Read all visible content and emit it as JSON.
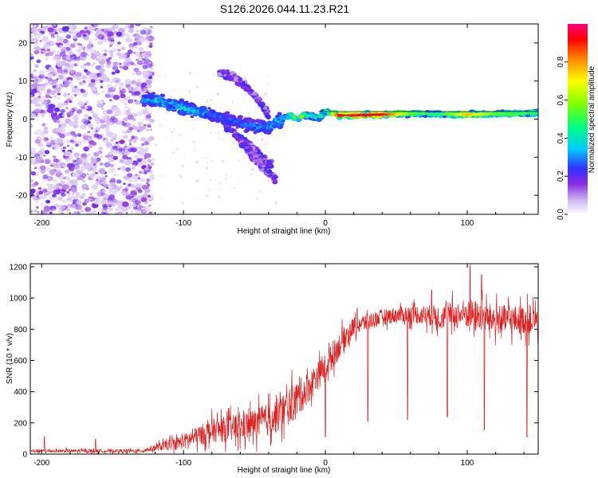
{
  "title": "S126.2026.044.11.23.R21",
  "colors": {
    "background": "#ffffff",
    "axis": "#000000",
    "snr_line": "#e02020",
    "cmap": [
      "#ffffff",
      "#cdb6f0",
      "#8a2be2",
      "#3030ff",
      "#00c8ff",
      "#00ff80",
      "#80ff00",
      "#ffff00",
      "#ff8000",
      "#ff0000",
      "#ff0080"
    ]
  },
  "chart_data": [
    {
      "type": "heatmap",
      "name": "spectrogram",
      "title": "S126.2026.044.11.23.R21",
      "xlabel": "Height of straight line (km)",
      "ylabel": "Frequency (Hz)",
      "xlim": [
        -208,
        150
      ],
      "ylim": [
        -25,
        25
      ],
      "xticks": [
        -200,
        -100,
        0,
        100
      ],
      "xtick_labels": [
        "-200",
        "-100",
        "0",
        "100"
      ],
      "yticks": [
        -20,
        -10,
        0,
        10,
        20
      ],
      "ytick_labels": [
        "-20",
        "-10",
        "0",
        "10",
        "20"
      ],
      "colorbar": {
        "label": "Normalized spectral amplitude",
        "range": [
          0,
          1
        ],
        "ticks": [
          0.0,
          0.2,
          0.4,
          0.6,
          0.8
        ],
        "tick_labels": [
          "0.0",
          "0.2",
          "0.4",
          "0.6",
          "0.8"
        ]
      },
      "noise_region_x": [
        -208,
        -122
      ],
      "ridge": {
        "x": [
          -128,
          -120,
          -110,
          -100,
          -90,
          -80,
          -70,
          -60,
          -50,
          -40,
          -35,
          -30,
          -25,
          -20,
          -15,
          -10,
          -5,
          0,
          5,
          10,
          20,
          40,
          60,
          80,
          100,
          120,
          150
        ],
        "y": [
          5,
          5,
          4,
          3,
          2,
          1,
          0,
          -1,
          -2,
          -2,
          -1,
          0,
          1,
          0,
          1,
          1,
          0,
          2,
          1.5,
          1,
          1,
          1.2,
          1.5,
          1.3,
          1.2,
          1.4,
          1.6
        ],
        "amp": [
          0.3,
          0.45,
          0.4,
          0.45,
          0.4,
          0.35,
          0.3,
          0.3,
          0.35,
          0.35,
          0.45,
          0.5,
          0.55,
          0.65,
          0.6,
          0.55,
          0.5,
          0.6,
          0.75,
          0.95,
          1.0,
          0.95,
          0.6,
          0.55,
          0.8,
          0.6,
          0.55
        ]
      },
      "branches": [
        {
          "x": [
            -75,
            -65,
            -55,
            -45,
            -40
          ],
          "y": [
            12,
            11,
            8,
            4,
            1
          ]
        },
        {
          "x": [
            -70,
            -60,
            -50,
            -45,
            -38
          ],
          "y": [
            -2,
            -5,
            -8,
            -10,
            -12
          ]
        },
        {
          "x": [
            -60,
            -50,
            -40,
            -35
          ],
          "y": [
            -6,
            -10,
            -14,
            -16
          ]
        }
      ]
    },
    {
      "type": "line",
      "name": "snr",
      "xlabel": "Height of straight line (km)",
      "ylabel": "SNR (10 * v/v)",
      "xlim": [
        -208,
        150
      ],
      "ylim": [
        0,
        1220
      ],
      "xticks": [
        -200,
        -100,
        0,
        100
      ],
      "xtick_labels": [
        "-200",
        "-100",
        "0",
        "100"
      ],
      "yticks": [
        0,
        200,
        400,
        600,
        800,
        1000,
        1200
      ],
      "ytick_labels": [
        "0",
        "200",
        "400",
        "600",
        "800",
        "1000",
        "1200"
      ],
      "series": [
        {
          "name": "SNR",
          "envelope_x": [
            -208,
            -130,
            -120,
            -100,
            -80,
            -60,
            -40,
            -30,
            -20,
            -10,
            0,
            10,
            20,
            40,
            60,
            80,
            100,
            120,
            150
          ],
          "envelope_mean": [
            20,
            20,
            40,
            80,
            150,
            170,
            220,
            270,
            350,
            450,
            560,
            700,
            820,
            880,
            900,
            880,
            900,
            860,
            860
          ],
          "envelope_spread": [
            15,
            15,
            30,
            70,
            110,
            130,
            150,
            170,
            170,
            140,
            120,
            120,
            90,
            70,
            80,
            110,
            140,
            140,
            130
          ],
          "spikes": [
            {
              "x": -198,
              "y": 110
            },
            {
              "x": -162,
              "y": 95
            },
            {
              "x": 75,
              "y": 1050
            },
            {
              "x": 102,
              "y": 1210
            },
            {
              "x": 110,
              "y": 1150
            }
          ],
          "dips": [
            {
              "x": 0,
              "y": 110
            },
            {
              "x": 30,
              "y": 210
            },
            {
              "x": 58,
              "y": 220
            },
            {
              "x": 86,
              "y": 240
            },
            {
              "x": 112,
              "y": 155
            },
            {
              "x": 142,
              "y": 110
            }
          ]
        }
      ]
    }
  ]
}
